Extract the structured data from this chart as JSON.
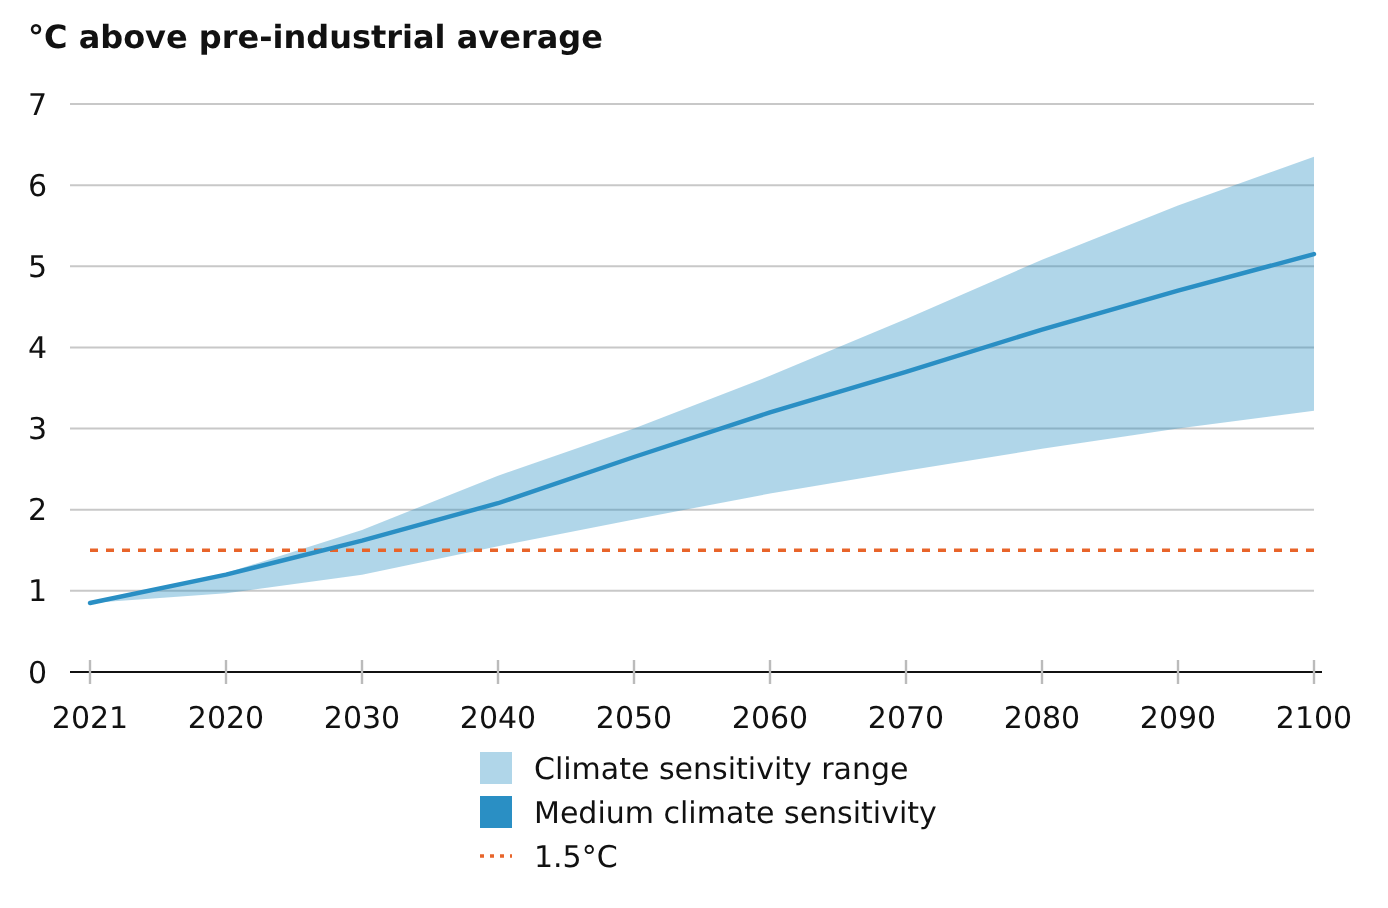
{
  "chart_data": {
    "type": "line",
    "title": "°C above pre-industrial average",
    "categories": [
      "2021",
      "2020",
      "2030",
      "2040",
      "2050",
      "2060",
      "2070",
      "2080",
      "2090",
      "2100"
    ],
    "series": [
      {
        "name": "Medium climate sensitivity",
        "color": "#2a8fc4",
        "values": [
          0.85,
          1.2,
          1.62,
          2.08,
          2.65,
          3.2,
          3.7,
          4.22,
          4.7,
          5.15
        ],
        "lower": [
          0.85,
          0.97,
          1.2,
          1.55,
          1.88,
          2.2,
          2.48,
          2.75,
          3.0,
          3.22
        ],
        "upper": [
          0.85,
          1.22,
          1.75,
          2.42,
          3.0,
          3.65,
          4.35,
          5.08,
          5.75,
          6.35
        ]
      }
    ],
    "annotations": [
      "Climate sensitivity range"
    ],
    "ref_lines": [
      {
        "axis": "y",
        "value": 1.5,
        "label": "1.5°C",
        "color": "#e8642a",
        "line_style": "dashed"
      }
    ],
    "ylim": [
      0,
      7
    ],
    "yticks": [
      0,
      1,
      2,
      3,
      4,
      5,
      6,
      7
    ],
    "grid": "y",
    "legend": "bottom"
  }
}
